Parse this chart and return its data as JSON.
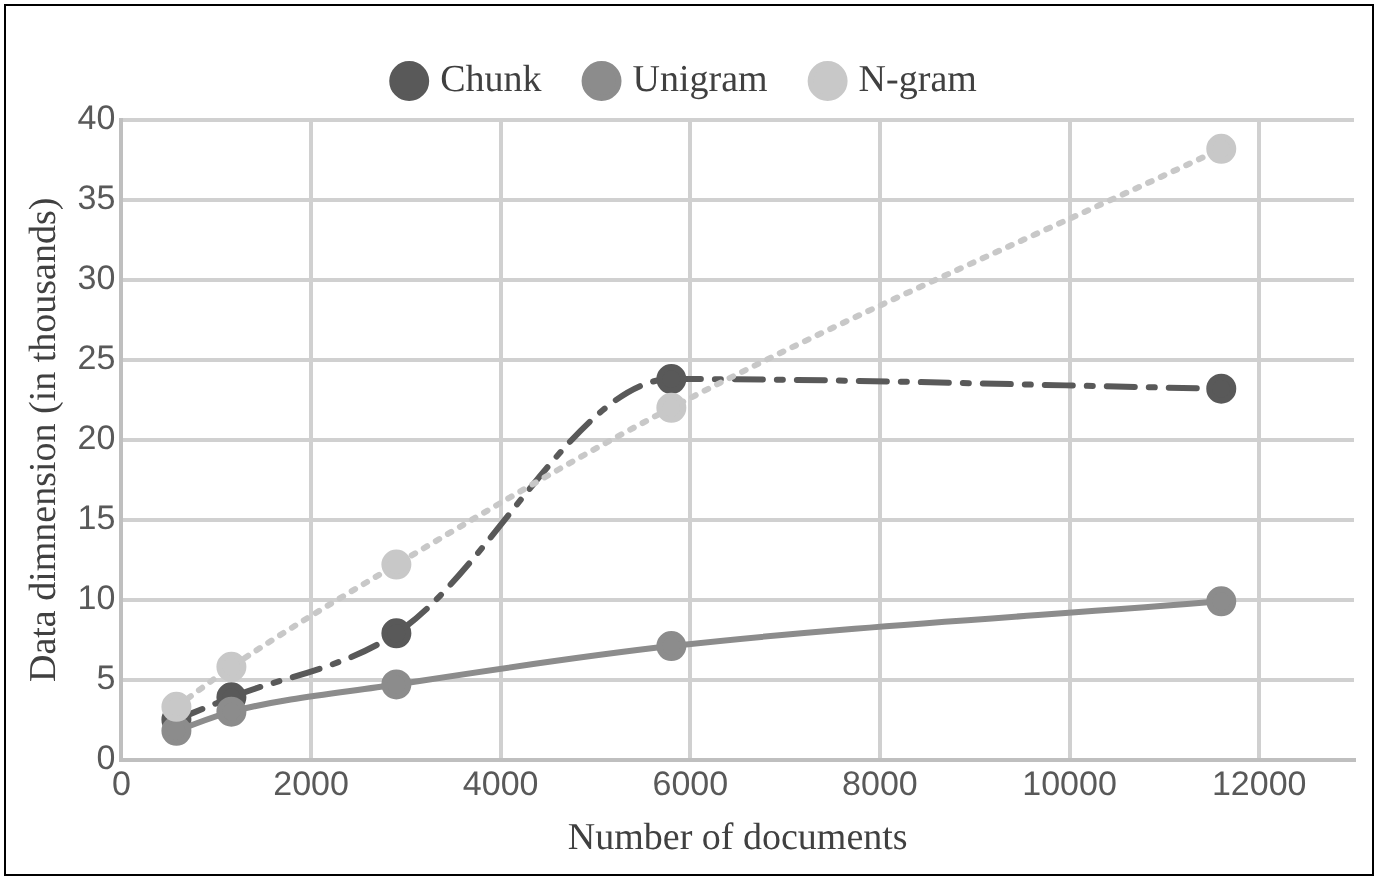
{
  "chart_data": {
    "type": "line",
    "xlabel": "Number of documents",
    "ylabel": "Data dimnension (in thousands)",
    "x": [
      580,
      1160,
      2900,
      5800,
      11600
    ],
    "series": [
      {
        "name": "Chunk",
        "color": "#595959",
        "line_style": "dashed",
        "values": [
          2.5,
          3.9,
          7.9,
          23.8,
          23.2
        ]
      },
      {
        "name": "Unigram",
        "color": "#8c8c8c",
        "line_style": "solid",
        "values": [
          1.8,
          3.0,
          4.7,
          7.1,
          9.9
        ]
      },
      {
        "name": "N-gram",
        "color": "#c8c8c8",
        "line_style": "dotted",
        "values": [
          3.3,
          5.8,
          12.2,
          22.0,
          38.2
        ]
      }
    ],
    "xlim": [
      0,
      13000
    ],
    "xticks": [
      0,
      2000,
      4000,
      6000,
      8000,
      10000,
      12000
    ],
    "ylim": [
      0,
      40
    ],
    "yticks": [
      0,
      5,
      10,
      15,
      20,
      25,
      30,
      35,
      40
    ],
    "grid": true,
    "legend": "top",
    "marker": "circle"
  }
}
